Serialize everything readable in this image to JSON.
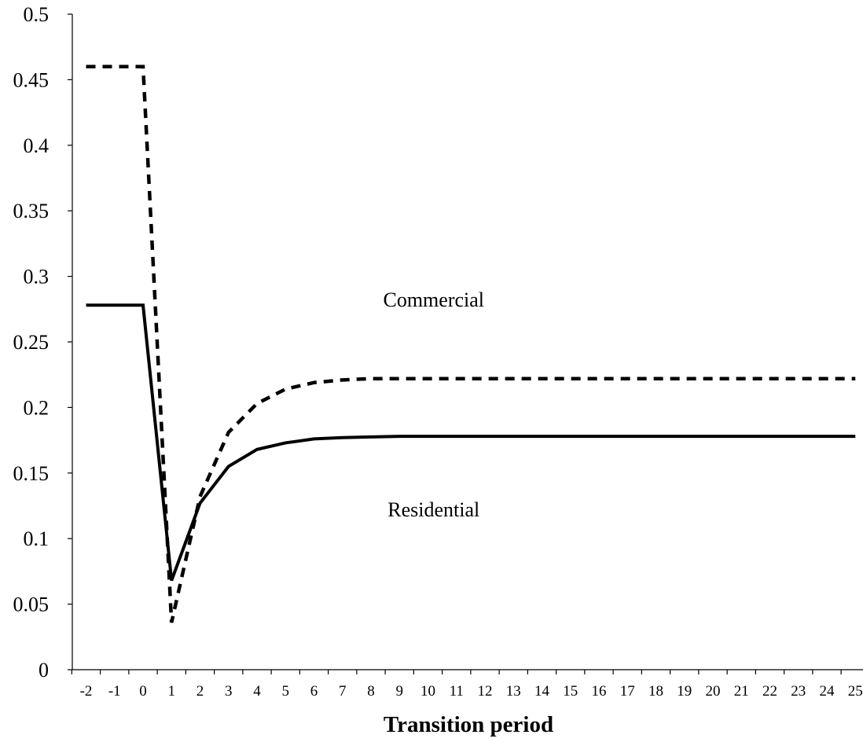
{
  "chart_data": {
    "type": "line",
    "xlabel": "Transition period",
    "ylabel": "",
    "x": [
      -2,
      -1,
      0,
      1,
      2,
      3,
      4,
      5,
      6,
      7,
      8,
      9,
      10,
      11,
      12,
      13,
      14,
      15,
      16,
      17,
      18,
      19,
      20,
      21,
      22,
      23,
      24,
      25
    ],
    "x_tick_labels": [
      "-2",
      "-1",
      "0",
      "1",
      "2",
      "3",
      "4",
      "5",
      "6",
      "7",
      "8",
      "9",
      "10",
      "11",
      "12",
      "13",
      "14",
      "15",
      "16",
      "17",
      "18",
      "19",
      "20",
      "21",
      "22",
      "23",
      "24",
      "25"
    ],
    "ylim": [
      0,
      0.5
    ],
    "y_ticks": [
      0,
      0.05,
      0.1,
      0.15,
      0.2,
      0.25,
      0.3,
      0.35,
      0.4,
      0.45,
      0.5
    ],
    "y_tick_labels": [
      "0",
      "0.05",
      "0.1",
      "0.15",
      "0.2",
      "0.25",
      "0.3",
      "0.35",
      "0.4",
      "0.45",
      "0.5"
    ],
    "grid": false,
    "series": [
      {
        "style": "solid",
        "color": "#000000",
        "values": [
          0.278,
          0.278,
          0.278,
          0.068,
          0.127,
          0.155,
          0.168,
          0.173,
          0.176,
          0.177,
          0.1775,
          0.178,
          0.178,
          0.178,
          0.178,
          0.178,
          0.178,
          0.178,
          0.178,
          0.178,
          0.178,
          0.178,
          0.178,
          0.178,
          0.178,
          0.178,
          0.178,
          0.178
        ]
      },
      {
        "style": "dashed",
        "color": "#000000",
        "values": [
          0.46,
          0.46,
          0.46,
          0.036,
          0.132,
          0.181,
          0.203,
          0.214,
          0.219,
          0.221,
          0.222,
          0.222,
          0.222,
          0.222,
          0.222,
          0.222,
          0.222,
          0.222,
          0.222,
          0.222,
          0.222,
          0.222,
          0.222,
          0.222,
          0.222,
          0.222,
          0.222,
          0.222
        ]
      }
    ],
    "annotations": [
      {
        "text": "Commercial",
        "x": 10.2,
        "y": 0.277
      },
      {
        "text": "Residential",
        "x": 10.2,
        "y": 0.117
      }
    ]
  }
}
